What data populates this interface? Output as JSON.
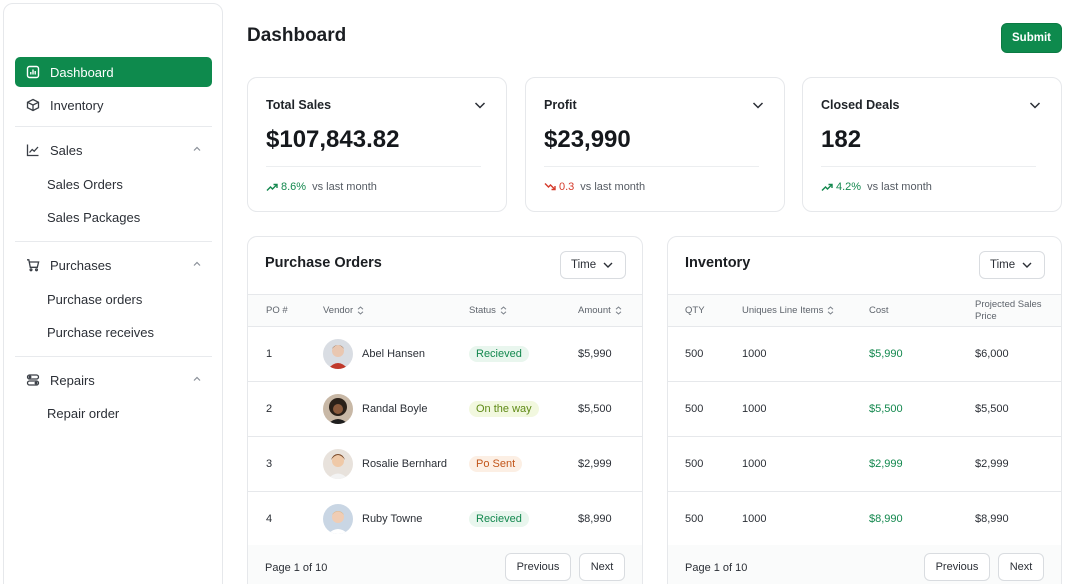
{
  "sidebar": {
    "items": [
      {
        "label": "Dashboard",
        "icon": "chart-bar-icon",
        "active": true
      },
      {
        "label": "Inventory",
        "icon": "box-icon"
      },
      {
        "label": "Sales",
        "icon": "line-chart-icon",
        "expanded": true,
        "children": [
          "Sales Orders",
          "Sales Packages"
        ]
      },
      {
        "label": "Purchases",
        "icon": "cart-icon",
        "expanded": true,
        "children": [
          "Purchase orders",
          "Purchase receives"
        ]
      },
      {
        "label": "Repairs",
        "icon": "tool-icon",
        "expanded": true,
        "children": [
          "Repair order"
        ]
      }
    ]
  },
  "header": {
    "title": "Dashboard",
    "submit_label": "Submit"
  },
  "stats": [
    {
      "title": "Total Sales",
      "value": "$107,843.82",
      "change": "8.6%",
      "direction": "up",
      "suffix": "vs last month"
    },
    {
      "title": "Profit",
      "value": "$23,990",
      "change": "0.3",
      "direction": "down",
      "suffix": "vs last month"
    },
    {
      "title": "Closed Deals",
      "value": "182",
      "change": "4.2%",
      "direction": "up",
      "suffix": "vs last month"
    }
  ],
  "purchase_orders": {
    "title": "Purchase Orders",
    "filter_label": "Time",
    "columns": [
      "PO #",
      "Vendor",
      "Status",
      "Amount"
    ],
    "rows": [
      {
        "po": "1",
        "vendor": "Abel Hansen",
        "status": "Recieved",
        "status_kind": "received",
        "amount": "$5,990"
      },
      {
        "po": "2",
        "vendor": "Randal Boyle",
        "status": "On the way",
        "status_kind": "way",
        "amount": "$5,500"
      },
      {
        "po": "3",
        "vendor": "Rosalie Bernhard",
        "status": "Po Sent",
        "status_kind": "sent",
        "amount": "$2,999"
      },
      {
        "po": "4",
        "vendor": "Ruby Towne",
        "status": "Recieved",
        "status_kind": "received",
        "amount": "$8,990"
      }
    ],
    "page_info": "Page 1 of 10",
    "prev_label": "Previous",
    "next_label": "Next"
  },
  "inventory": {
    "title": "Inventory",
    "filter_label": "Time",
    "columns": [
      "QTY",
      "Uniques Line Items",
      "Cost",
      "Projected Sales Price"
    ],
    "rows": [
      {
        "qty": "500",
        "items": "1000",
        "cost": "$5,990",
        "price": "$6,000"
      },
      {
        "qty": "500",
        "items": "1000",
        "cost": "$5,500",
        "price": "$5,500"
      },
      {
        "qty": "500",
        "items": "1000",
        "cost": "$2,999",
        "price": "$2,999"
      },
      {
        "qty": "500",
        "items": "1000",
        "cost": "$8,990",
        "price": "$8,990"
      }
    ],
    "page_info": "Page 1 of 10",
    "prev_label": "Previous",
    "next_label": "Next"
  },
  "colors": {
    "accent": "#0e8a4d",
    "up": "#13884e",
    "down": "#d53a2b"
  }
}
